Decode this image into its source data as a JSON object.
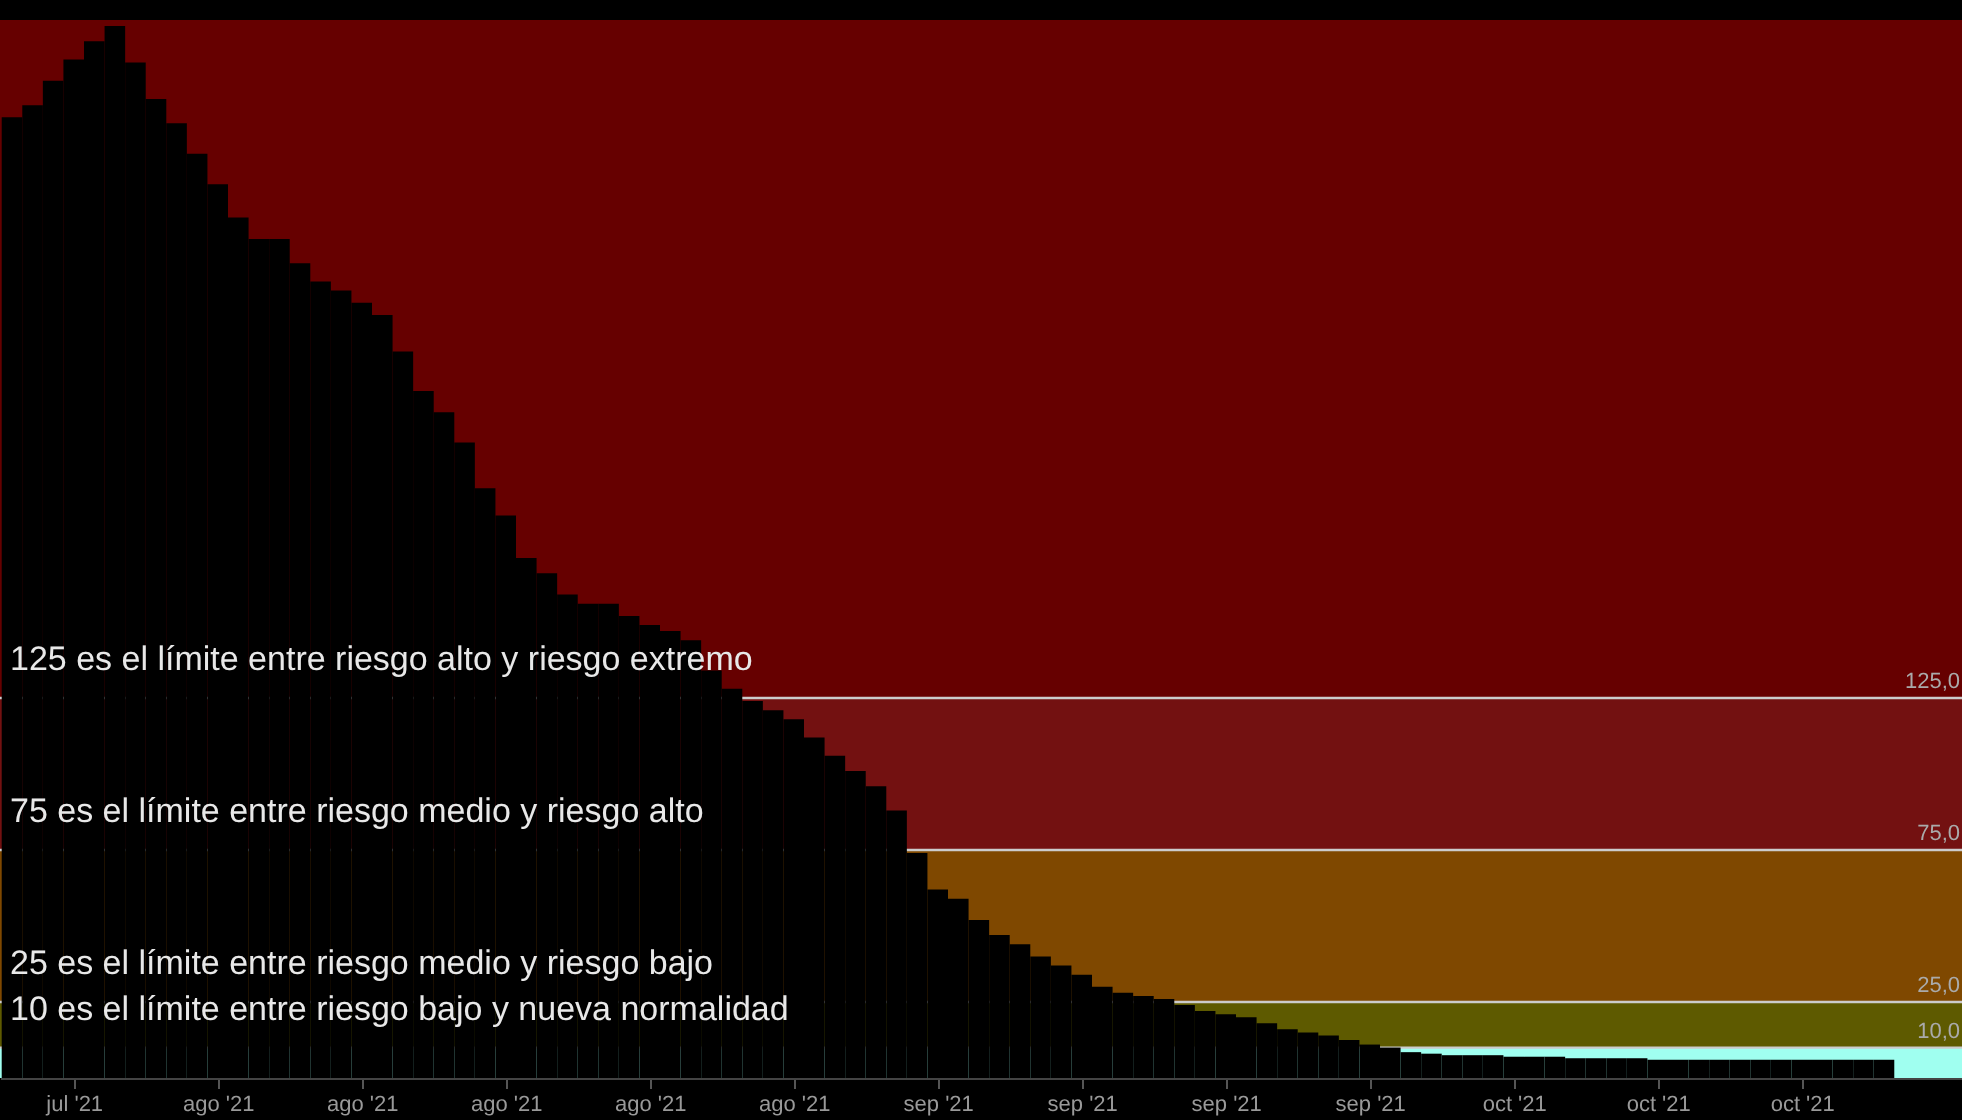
{
  "chart_data": {
    "type": "bar",
    "x": [
      "2021-07-22",
      "2021-07-23",
      "2021-07-24",
      "2021-07-25",
      "2021-07-26",
      "2021-07-27",
      "2021-07-28",
      "2021-07-29",
      "2021-07-30",
      "2021-07-31",
      "2021-08-01",
      "2021-08-02",
      "2021-08-03",
      "2021-08-04",
      "2021-08-05",
      "2021-08-06",
      "2021-08-07",
      "2021-08-08",
      "2021-08-09",
      "2021-08-10",
      "2021-08-11",
      "2021-08-12",
      "2021-08-13",
      "2021-08-14",
      "2021-08-15",
      "2021-08-16",
      "2021-08-17",
      "2021-08-18",
      "2021-08-19",
      "2021-08-20",
      "2021-08-21",
      "2021-08-22",
      "2021-08-23",
      "2021-08-24",
      "2021-08-25",
      "2021-08-26",
      "2021-08-27",
      "2021-08-28",
      "2021-08-29",
      "2021-08-30",
      "2021-08-31",
      "2021-09-01",
      "2021-09-02",
      "2021-09-03",
      "2021-09-04",
      "2021-09-05",
      "2021-09-06",
      "2021-09-07",
      "2021-09-08",
      "2021-09-09",
      "2021-09-10",
      "2021-09-11",
      "2021-09-12",
      "2021-09-13",
      "2021-09-14",
      "2021-09-15",
      "2021-09-16",
      "2021-09-17",
      "2021-09-18",
      "2021-09-19",
      "2021-09-20",
      "2021-09-21",
      "2021-09-22",
      "2021-09-23",
      "2021-09-24",
      "2021-09-25",
      "2021-09-26",
      "2021-09-27",
      "2021-09-28",
      "2021-09-29",
      "2021-09-30",
      "2021-10-01",
      "2021-10-02",
      "2021-10-03",
      "2021-10-04",
      "2021-10-05",
      "2021-10-06",
      "2021-10-07",
      "2021-10-08",
      "2021-10-09",
      "2021-10-10",
      "2021-10-11",
      "2021-10-12",
      "2021-10-13",
      "2021-10-14",
      "2021-10-15",
      "2021-10-16",
      "2021-10-17",
      "2021-10-18",
      "2021-10-19",
      "2021-10-20",
      "2021-10-21"
    ],
    "series": [
      {
        "color": "#000000",
        "values": [
          316,
          320,
          328,
          335,
          341,
          346,
          334,
          322,
          314,
          304,
          294,
          283,
          276,
          276,
          268,
          262,
          259,
          255,
          251,
          239,
          226,
          219,
          209,
          194,
          185,
          171,
          166,
          159,
          156,
          156,
          152,
          149,
          147,
          144,
          134,
          128,
          124,
          121,
          118,
          112,
          106,
          101,
          96,
          88,
          74,
          62,
          59,
          52,
          47,
          44,
          40,
          37,
          34,
          30,
          28,
          27,
          26,
          24,
          22,
          21,
          20,
          18,
          16,
          15,
          14,
          12.5,
          11,
          10,
          8.5,
          8,
          7.5,
          7.5,
          7.5,
          7,
          7,
          7,
          6.5,
          6.5,
          6.5,
          6.5,
          6,
          6,
          6,
          6,
          6,
          6,
          6,
          6,
          6,
          6,
          6,
          6
        ]
      }
    ],
    "xlim": [
      "2021-07-21T10:00",
      "2021-10-24T19:00"
    ],
    "xticks": [
      {
        "value": "2021-07-25",
        "label": "jul '21"
      },
      {
        "value": "2021-08-01",
        "label": "ago '21"
      },
      {
        "value": "2021-08-08",
        "label": "ago '21"
      },
      {
        "value": "2021-08-15",
        "label": "ago '21"
      },
      {
        "value": "2021-08-22",
        "label": "ago '21"
      },
      {
        "value": "2021-08-29",
        "label": "ago '21"
      },
      {
        "value": "2021-09-05",
        "label": "sep '21"
      },
      {
        "value": "2021-09-12",
        "label": "sep '21"
      },
      {
        "value": "2021-09-19",
        "label": "sep '21"
      },
      {
        "value": "2021-09-26",
        "label": "sep '21"
      },
      {
        "value": "2021-10-03",
        "label": "oct '21"
      },
      {
        "value": "2021-10-10",
        "label": "oct '21"
      },
      {
        "value": "2021-10-17",
        "label": "oct '21"
      }
    ],
    "ylim": [
      0,
      348
    ],
    "tick_labels": "x",
    "bands": [
      {
        "axis": "y",
        "from": 125,
        "to": 348,
        "color": "#660000"
      },
      {
        "axis": "y",
        "from": 75,
        "to": 125,
        "color": "#731111"
      },
      {
        "axis": "y",
        "from": 25,
        "to": 75,
        "color": "#7f4800"
      },
      {
        "axis": "y",
        "from": 10,
        "to": 25,
        "color": "#5e5a00"
      },
      {
        "axis": "y",
        "from": 0,
        "to": 10,
        "color": "#a0fff0"
      }
    ],
    "ref_lines": [
      {
        "axis": "y",
        "value": 125,
        "label": "125,0",
        "color": "#cccccc"
      },
      {
        "axis": "y",
        "value": 75,
        "label": "75,0",
        "color": "#cccccc"
      },
      {
        "axis": "y",
        "value": 25,
        "label": "25,0",
        "color": "#cccccc"
      },
      {
        "axis": "y",
        "value": 10,
        "label": "10,0",
        "color": "#cccccc"
      }
    ],
    "annotations": [
      {
        "text": "125 es el límite entre riesgo alto y riesgo extremo",
        "x": "2021-07-22",
        "y": 125
      },
      {
        "text": "75 es el límite entre riesgo medio y riesgo alto",
        "x": "2021-07-22",
        "y": 75
      },
      {
        "text": "25 es el límite entre riesgo medio y riesgo bajo",
        "x": "2021-07-22",
        "y": 25
      },
      {
        "text": "10 es el límite entre riesgo bajo y nueva normalidad",
        "x": "2021-07-22",
        "y": 10
      }
    ]
  }
}
